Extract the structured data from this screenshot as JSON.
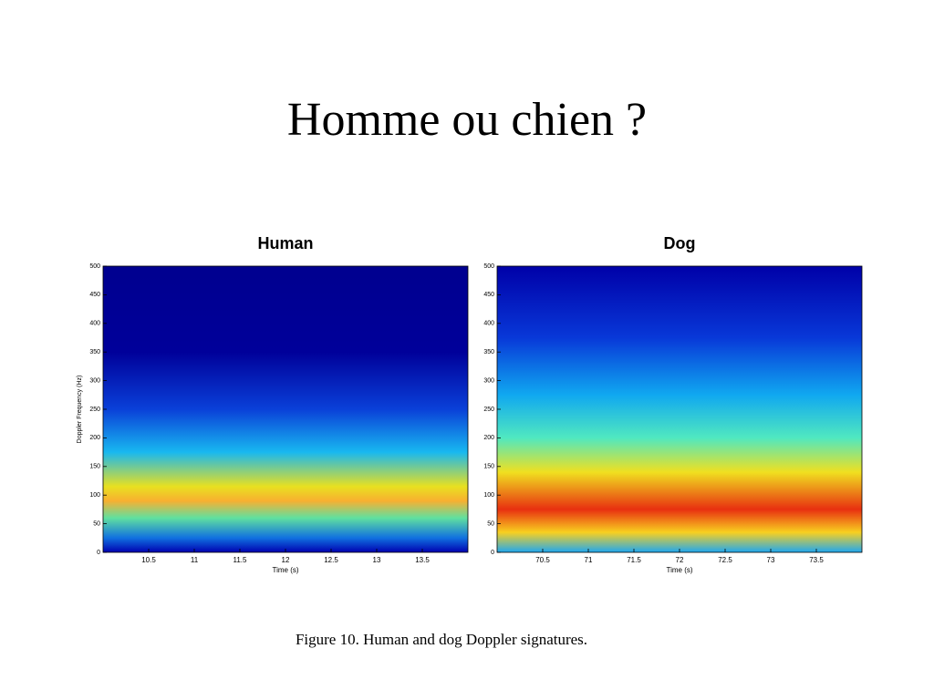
{
  "slide_title": "Homme ou chien ?",
  "caption": "Figure 10.  Human and dog Doppler signatures.",
  "chart_data": [
    {
      "type": "heatmap",
      "title": "Human",
      "x_label": "Time (s)",
      "y_label": "Doppler Frequency (Hz)",
      "xlim": [
        10,
        14
      ],
      "xticks": [
        10.5,
        11,
        11.5,
        12,
        12.5,
        13,
        13.5
      ],
      "ylim": [
        0,
        500
      ],
      "yticks": [
        0,
        50,
        100,
        150,
        200,
        250,
        300,
        350,
        400,
        450,
        500
      ]
    },
    {
      "type": "heatmap",
      "title": "Dog",
      "x_label": "Time (s)",
      "xlim": [
        70,
        74
      ],
      "xticks": [
        70.5,
        71,
        71.5,
        72,
        72.5,
        73,
        73.5
      ],
      "ylim": [
        0,
        500
      ],
      "yticks": [
        0,
        50,
        100,
        150,
        200,
        250,
        300,
        350,
        400,
        450,
        500
      ]
    }
  ]
}
